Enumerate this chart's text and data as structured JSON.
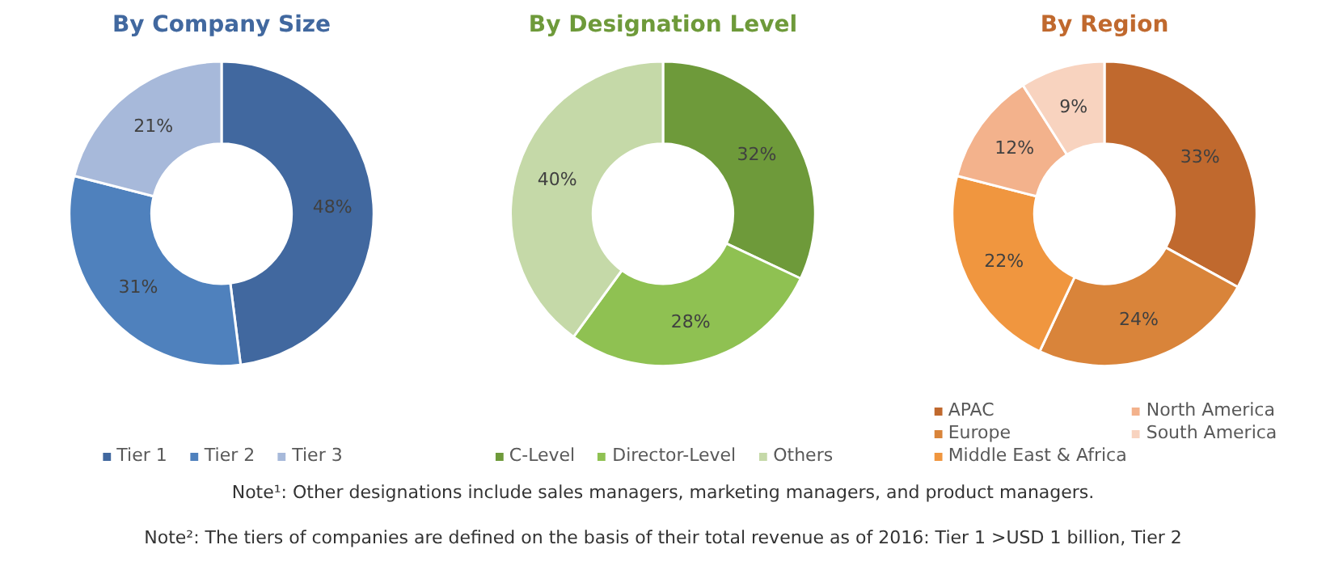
{
  "chart_data": [
    {
      "type": "donut",
      "title": "By Company Size",
      "categories": [
        "Tier 1",
        "Tier 2",
        "Tier 3"
      ],
      "values": [
        48,
        31,
        21
      ],
      "value_labels": [
        "48%",
        "31%",
        "21%"
      ],
      "colors": [
        "#41689f",
        "#4f81bd",
        "#a7b9da"
      ],
      "legend": "bottom"
    },
    {
      "type": "donut",
      "title": "By Designation Level",
      "categories": [
        "C-Level",
        "Director-Level",
        "Others"
      ],
      "values": [
        32,
        28,
        40
      ],
      "value_labels": [
        "32%",
        "28%",
        "40%"
      ],
      "colors": [
        "#6e9a3a",
        "#8fc152",
        "#c5d9a8"
      ],
      "legend": "bottom"
    },
    {
      "type": "donut",
      "title": "By Region",
      "categories": [
        "APAC",
        "Europe",
        "Middle East & Africa",
        "North America",
        "South America"
      ],
      "values": [
        33,
        24,
        22,
        12,
        9
      ],
      "value_labels": [
        "33%",
        "24%",
        "22%",
        "12%",
        "9%"
      ],
      "colors": [
        "#c0692e",
        "#d9843a",
        "#f0963f",
        "#f3b28c",
        "#f8d3bf"
      ],
      "legend": "bottom",
      "annotations": [
        "Note¹: Other designations include sales managers, marketing managers, and product managers.",
        "Note²: The tiers of companies are defined on the basis of their total revenue as of 2016: Tier 1 >USD 1 billion, Tier 2"
      ]
    }
  ]
}
